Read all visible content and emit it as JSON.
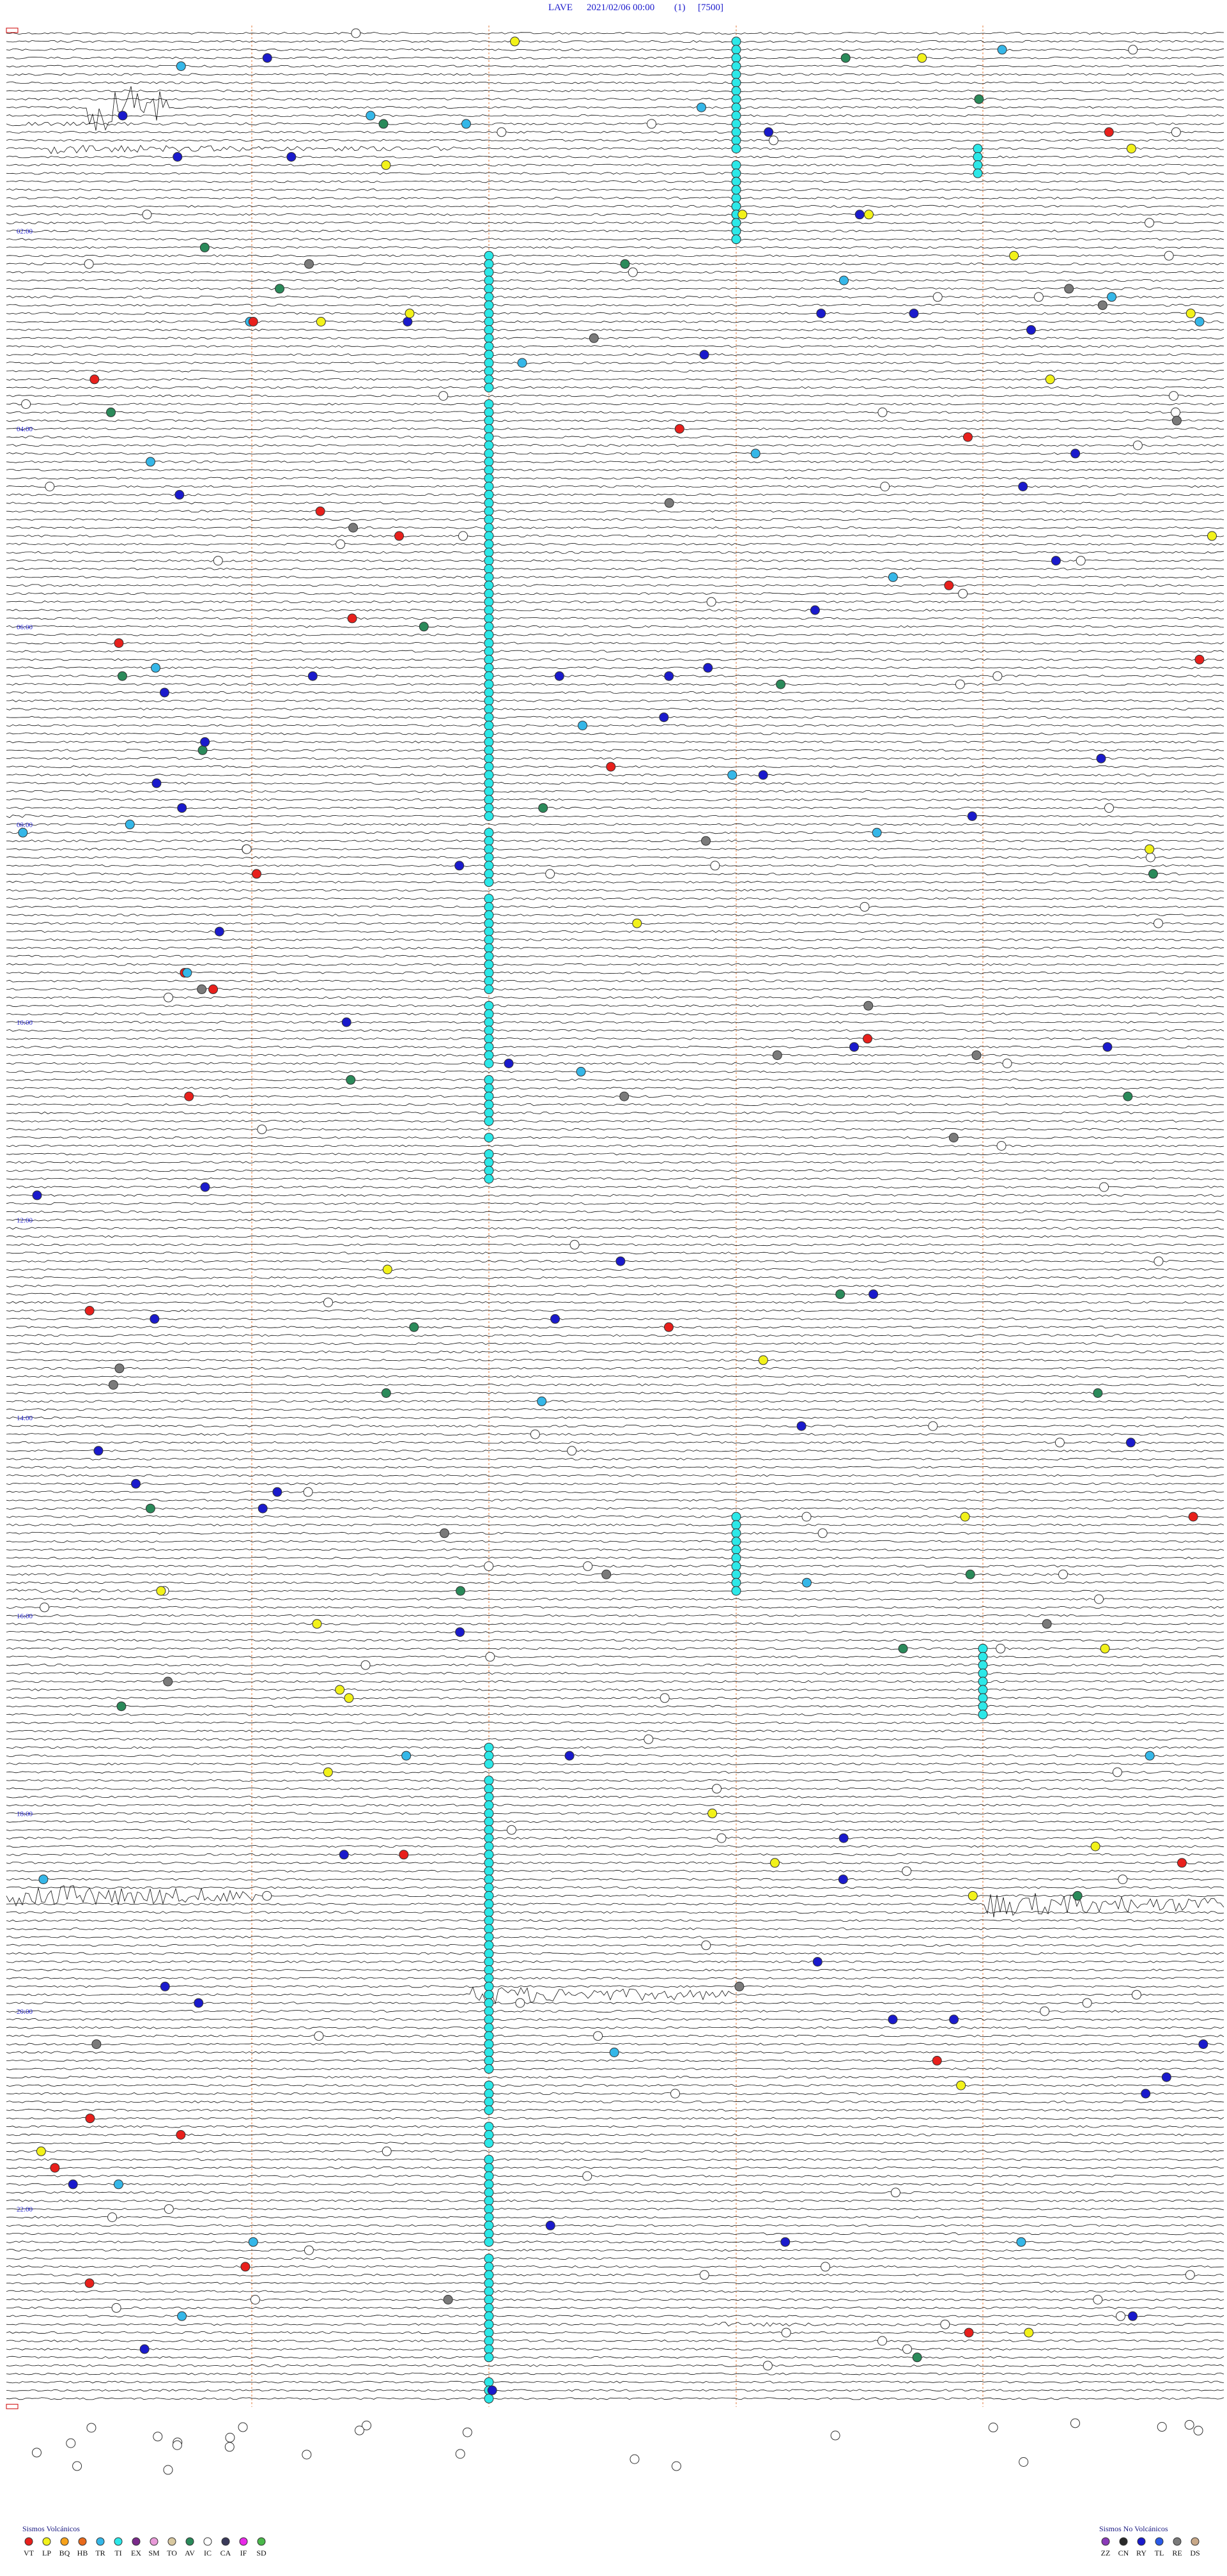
{
  "header": {
    "station": "LAVE",
    "datetime": "2021/02/06 00:00",
    "channel": "(1)",
    "scale": "[7500]"
  },
  "time_labels": [
    "02:00",
    "04:00",
    "06:00",
    "08:00",
    "10:00",
    "12:00",
    "14:00",
    "16:00",
    "18:00",
    "20:00",
    "22:00"
  ],
  "legend": {
    "volcanic": {
      "title": "Sismos Volcánicos",
      "codes": [
        {
          "code": "VT",
          "color": "#e8201c"
        },
        {
          "code": "LP",
          "color": "#f2f21a"
        },
        {
          "code": "BQ",
          "color": "#f7a21b"
        },
        {
          "code": "HB",
          "color": "#e86a1c"
        },
        {
          "code": "TR",
          "color": "#35b7e8"
        },
        {
          "code": "TI",
          "color": "#2ce8e8"
        },
        {
          "code": "EX",
          "color": "#7a2a8a"
        },
        {
          "code": "SM",
          "color": "#e89ad8"
        },
        {
          "code": "TO",
          "color": "#d8c8a0"
        },
        {
          "code": "AV",
          "color": "#2a8a5a"
        },
        {
          "code": "IC",
          "color": "#ffffff"
        },
        {
          "code": "CA",
          "color": "#3a3a5a"
        },
        {
          "code": "IF",
          "color": "#e82ae8"
        },
        {
          "code": "SD",
          "color": "#4ab84a"
        }
      ]
    },
    "non_volcanic": {
      "title": "Sismos No Volcánicos",
      "codes": [
        {
          "code": "ZZ",
          "color": "#8a3ab8"
        },
        {
          "code": "CN",
          "color": "#2a2a2a"
        },
        {
          "code": "RY",
          "color": "#1a1acc"
        },
        {
          "code": "TL",
          "color": "#2a5ae8"
        },
        {
          "code": "RE",
          "color": "#7a7a7a"
        },
        {
          "code": "DS",
          "color": "#c8a888"
        }
      ]
    }
  }
}
